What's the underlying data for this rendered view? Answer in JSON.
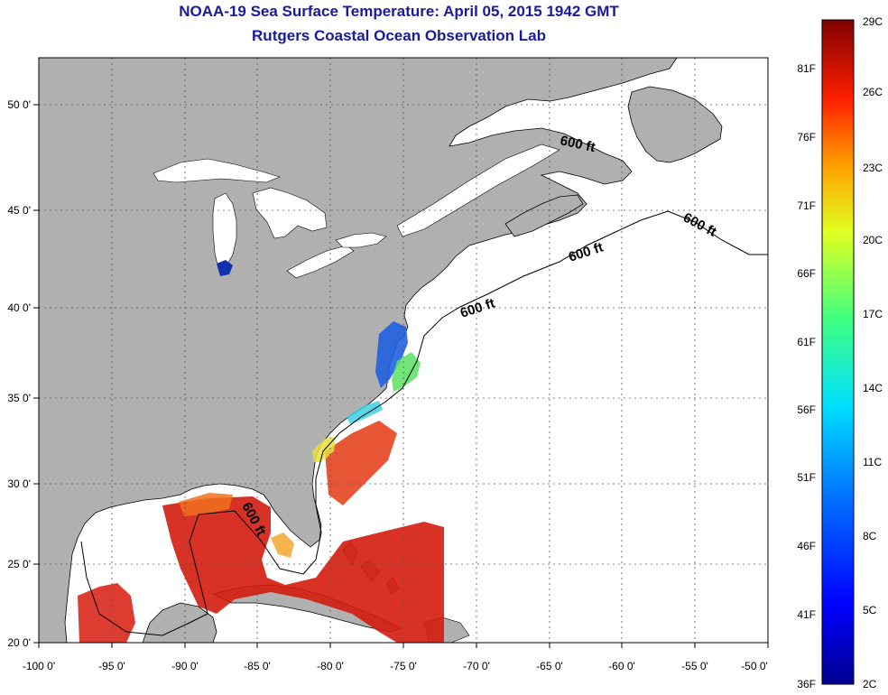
{
  "title": "NOAA-19 Sea Surface Temperature:  April 05, 2015 1942 GMT",
  "subtitle": "Rutgers Coastal Ocean Observation Lab",
  "lat_ticks": [
    "50 0'",
    "45 0'",
    "40 0'",
    "35 0'",
    "30 0'",
    "25 0'",
    "20 0'"
  ],
  "lon_ticks": [
    "-100 0'",
    "-95 0'",
    "-90 0'",
    "-85 0'",
    "-80 0'",
    "-75 0'",
    "-70 0'",
    "-65 0'",
    "-60 0'",
    "-55 0'",
    "-50 0'"
  ],
  "isobath_labels": [
    "600 ft",
    "600 ft",
    "600 ft",
    "600 ft",
    "600 ft"
  ],
  "colorbar": {
    "fahrenheit": [
      "81F",
      "76F",
      "71F",
      "66F",
      "61F",
      "56F",
      "51F",
      "46F",
      "41F",
      "36F"
    ],
    "celsius": [
      "29C",
      "26C",
      "23C",
      "20C",
      "17C",
      "14C",
      "11C",
      "8C",
      "5C",
      "2C"
    ]
  },
  "colors": {
    "land": "#b0b0b0",
    "water_nodata": "#ffffff",
    "title": "#1a1aa0",
    "grid": "#555555"
  }
}
